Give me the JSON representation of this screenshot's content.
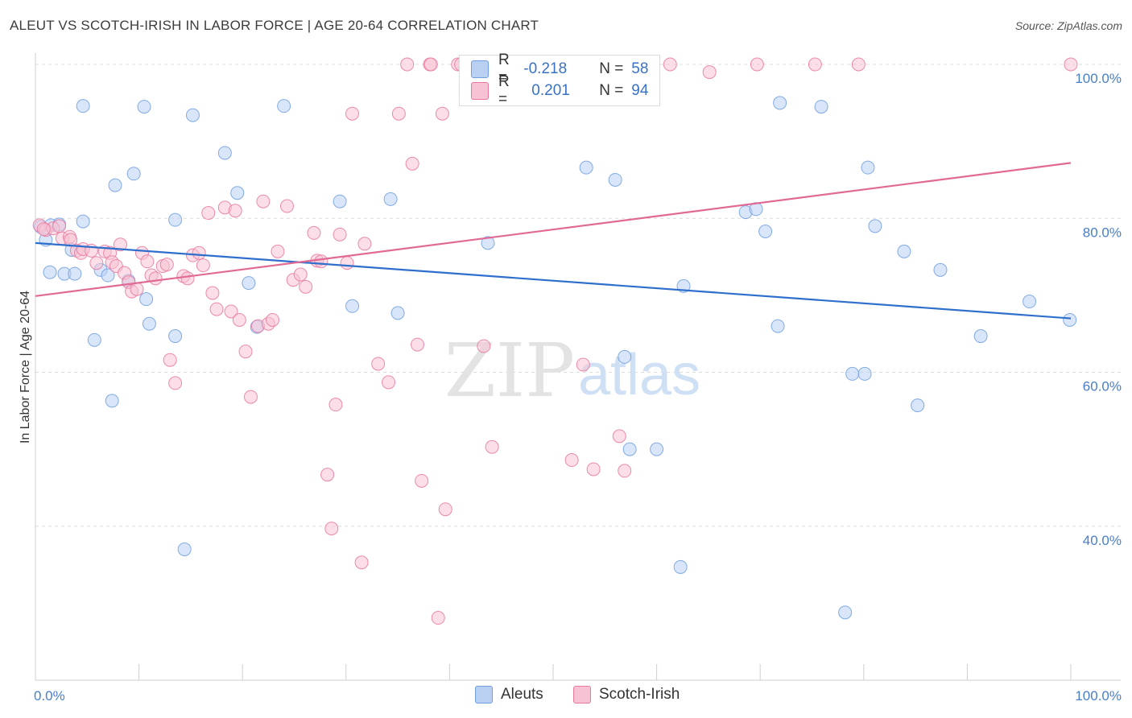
{
  "header": {
    "title": "ALEUT VS SCOTCH-IRISH IN LABOR FORCE | AGE 20-64 CORRELATION CHART",
    "source": "Source: ZipAtlas.com"
  },
  "legend": {
    "aleut": {
      "r_label": "R =",
      "r_value": "-0.218",
      "n_label": "N =",
      "n_value": "58"
    },
    "scotch": {
      "r_label": "R =",
      "r_value": "0.201",
      "n_label": "N =",
      "n_value": "94"
    }
  },
  "bottom_legend": {
    "aleut": "Aleuts",
    "scotch": "Scotch-Irish"
  },
  "watermark": {
    "zip": "ZIP",
    "atlas": "atlas"
  },
  "colors": {
    "aleut": "#6f9fe0",
    "aleut_fill": "#b9d0f2",
    "scotch": "#e8789f",
    "scotch_fill": "#f7c3d4",
    "aleut_line": "#2f6fcc",
    "scotch_line": "#e06a94"
  },
  "chart_data": {
    "type": "scatter",
    "title": "ALEUT VS SCOTCH-IRISH IN LABOR FORCE | AGE 20-64 CORRELATION CHART",
    "xlabel": "",
    "ylabel": "In Labor Force | Age 20-64",
    "xlim": [
      0,
      100
    ],
    "ylim": [
      20,
      100
    ],
    "x_tick_labels": [
      "0.0%",
      "100.0%"
    ],
    "y_ticks": [
      40,
      60,
      80,
      100
    ],
    "y_tick_labels": [
      "40.0%",
      "60.0%",
      "80.0%",
      "100.0%"
    ],
    "grid": true,
    "legend_position": "top-center",
    "series": [
      {
        "name": "Aleuts",
        "trend": {
          "x": [
            0,
            100
          ],
          "y": [
            76.8,
            67.0
          ]
        },
        "points": [
          [
            0.5,
            78.9
          ],
          [
            1.5,
            79.1
          ],
          [
            2.3,
            79.2
          ],
          [
            4.6,
            79.6
          ],
          [
            1.4,
            73.0
          ],
          [
            2.8,
            72.8
          ],
          [
            3.8,
            72.8
          ],
          [
            3.5,
            75.9
          ],
          [
            4.6,
            94.6
          ],
          [
            10.5,
            94.5
          ],
          [
            15.2,
            93.4
          ],
          [
            24.0,
            94.6
          ],
          [
            18.3,
            88.5
          ],
          [
            9.5,
            85.8
          ],
          [
            7.7,
            84.3
          ],
          [
            19.5,
            83.3
          ],
          [
            13.5,
            79.8
          ],
          [
            6.3,
            73.3
          ],
          [
            7.0,
            72.6
          ],
          [
            9.0,
            71.9
          ],
          [
            10.7,
            69.5
          ],
          [
            11.0,
            66.3
          ],
          [
            13.5,
            64.7
          ],
          [
            5.7,
            64.2
          ],
          [
            7.4,
            56.3
          ],
          [
            14.4,
            37.0
          ],
          [
            20.6,
            71.6
          ],
          [
            21.4,
            65.9
          ],
          [
            29.4,
            82.2
          ],
          [
            34.3,
            82.5
          ],
          [
            30.6,
            68.6
          ],
          [
            35.0,
            67.7
          ],
          [
            43.7,
            76.8
          ],
          [
            53.2,
            86.6
          ],
          [
            56.0,
            85.0
          ],
          [
            56.9,
            62.0
          ],
          [
            57.4,
            50.0
          ],
          [
            60.0,
            50.0
          ],
          [
            62.6,
            71.2
          ],
          [
            62.3,
            34.7
          ],
          [
            68.6,
            80.8
          ],
          [
            69.6,
            81.2
          ],
          [
            70.5,
            78.3
          ],
          [
            71.7,
            66.0
          ],
          [
            71.9,
            95.0
          ],
          [
            75.9,
            94.5
          ],
          [
            78.2,
            28.8
          ],
          [
            78.9,
            59.8
          ],
          [
            80.1,
            59.8
          ],
          [
            80.4,
            86.6
          ],
          [
            81.1,
            79.0
          ],
          [
            83.9,
            75.7
          ],
          [
            85.2,
            55.7
          ],
          [
            87.4,
            73.3
          ],
          [
            91.3,
            64.7
          ],
          [
            96.0,
            69.2
          ],
          [
            99.9,
            66.8
          ],
          [
            1.0,
            77.2
          ]
        ]
      },
      {
        "name": "Scotch-Irish",
        "trend": {
          "x": [
            0,
            100
          ],
          "y": [
            69.9,
            87.2
          ]
        },
        "points": [
          [
            0.4,
            79.1
          ],
          [
            1.0,
            78.5
          ],
          [
            1.7,
            78.7
          ],
          [
            2.3,
            79.0
          ],
          [
            2.6,
            77.4
          ],
          [
            3.3,
            77.6
          ],
          [
            3.4,
            77.2
          ],
          [
            4.0,
            75.8
          ],
          [
            4.4,
            75.5
          ],
          [
            4.6,
            76.0
          ],
          [
            5.4,
            75.8
          ],
          [
            5.9,
            74.2
          ],
          [
            6.7,
            75.7
          ],
          [
            7.2,
            75.5
          ],
          [
            7.4,
            74.3
          ],
          [
            7.8,
            73.8
          ],
          [
            8.2,
            76.6
          ],
          [
            8.6,
            72.9
          ],
          [
            9.0,
            71.7
          ],
          [
            9.3,
            70.5
          ],
          [
            9.8,
            70.8
          ],
          [
            10.3,
            75.5
          ],
          [
            10.8,
            74.4
          ],
          [
            11.2,
            72.6
          ],
          [
            11.6,
            72.2
          ],
          [
            12.3,
            73.8
          ],
          [
            12.7,
            74.0
          ],
          [
            13.0,
            61.6
          ],
          [
            13.5,
            58.6
          ],
          [
            14.3,
            72.5
          ],
          [
            14.7,
            72.2
          ],
          [
            15.2,
            75.2
          ],
          [
            15.8,
            75.5
          ],
          [
            16.2,
            73.9
          ],
          [
            16.7,
            80.7
          ],
          [
            17.1,
            70.3
          ],
          [
            17.5,
            68.2
          ],
          [
            18.3,
            81.4
          ],
          [
            18.9,
            67.9
          ],
          [
            19.3,
            81.0
          ],
          [
            19.7,
            66.8
          ],
          [
            20.3,
            62.7
          ],
          [
            20.8,
            56.8
          ],
          [
            21.5,
            66.0
          ],
          [
            22.0,
            82.2
          ],
          [
            22.5,
            66.3
          ],
          [
            22.9,
            66.8
          ],
          [
            23.4,
            75.7
          ],
          [
            24.3,
            81.6
          ],
          [
            24.9,
            72.0
          ],
          [
            25.6,
            72.7
          ],
          [
            26.1,
            71.1
          ],
          [
            26.9,
            78.1
          ],
          [
            27.2,
            74.5
          ],
          [
            27.6,
            74.4
          ],
          [
            28.2,
            46.7
          ],
          [
            28.6,
            39.7
          ],
          [
            29.0,
            55.8
          ],
          [
            29.4,
            77.9
          ],
          [
            30.1,
            74.2
          ],
          [
            30.6,
            93.6
          ],
          [
            31.5,
            35.3
          ],
          [
            31.8,
            76.7
          ],
          [
            33.1,
            61.1
          ],
          [
            34.1,
            58.7
          ],
          [
            35.1,
            93.6
          ],
          [
            35.9,
            100.0
          ],
          [
            36.4,
            87.1
          ],
          [
            36.9,
            63.6
          ],
          [
            37.3,
            45.9
          ],
          [
            38.1,
            100.0
          ],
          [
            38.2,
            100.0
          ],
          [
            38.9,
            28.1
          ],
          [
            39.3,
            93.6
          ],
          [
            39.6,
            42.2
          ],
          [
            40.8,
            100.0
          ],
          [
            41.1,
            100.0
          ],
          [
            43.3,
            63.4
          ],
          [
            44.1,
            50.3
          ],
          [
            44.4,
            100.0
          ],
          [
            51.0,
            100.0
          ],
          [
            51.8,
            48.6
          ],
          [
            52.9,
            61.0
          ],
          [
            53.9,
            47.4
          ],
          [
            56.4,
            51.7
          ],
          [
            56.9,
            47.2
          ],
          [
            59.4,
            100.0
          ],
          [
            61.3,
            100.0
          ],
          [
            65.1,
            99.0
          ],
          [
            69.7,
            100.0
          ],
          [
            75.3,
            100.0
          ],
          [
            79.5,
            100.0
          ],
          [
            100.0,
            100.0
          ],
          [
            0.8,
            78.6
          ]
        ]
      }
    ]
  }
}
